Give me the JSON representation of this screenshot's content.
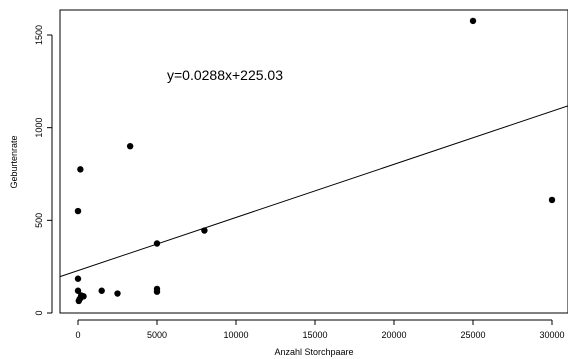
{
  "chart_data": {
    "type": "scatter",
    "xlabel": "Anzahl Storchpaare",
    "ylabel": "Geburtenrate",
    "xlim": [
      -1000,
      31000
    ],
    "ylim": [
      -10,
      1630
    ],
    "xticks": [
      0,
      5000,
      10000,
      15000,
      20000,
      25000,
      30000
    ],
    "yticks": [
      0,
      500,
      1000,
      1500
    ],
    "grid": false,
    "legend": "none",
    "annotation": "y=0.0288x+225.03",
    "regression": {
      "slope": 0.0288,
      "intercept": 225.03
    },
    "points": [
      {
        "x": 25000,
        "y": 1576
      },
      {
        "x": 3300,
        "y": 900
      },
      {
        "x": 150,
        "y": 775
      },
      {
        "x": 0,
        "y": 550
      },
      {
        "x": 30000,
        "y": 610
      },
      {
        "x": 8000,
        "y": 445
      },
      {
        "x": 5000,
        "y": 375
      },
      {
        "x": 0,
        "y": 185
      },
      {
        "x": 5000,
        "y": 130
      },
      {
        "x": 5000,
        "y": 115
      },
      {
        "x": 1500,
        "y": 120
      },
      {
        "x": 2500,
        "y": 105
      },
      {
        "x": 0,
        "y": 120
      },
      {
        "x": 200,
        "y": 95
      },
      {
        "x": 350,
        "y": 90
      },
      {
        "x": 100,
        "y": 75
      },
      {
        "x": 50,
        "y": 65
      },
      {
        "x": 150,
        "y": 80
      }
    ]
  }
}
